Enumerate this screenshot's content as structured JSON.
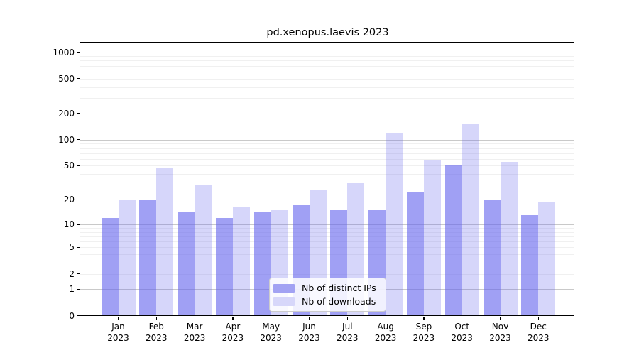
{
  "title": "pd.xenopus.laevis 2023",
  "chart_data": {
    "type": "bar",
    "title": "pd.xenopus.laevis 2023",
    "xlabel": "",
    "ylabel": "",
    "categories": [
      "Jan",
      "Feb",
      "Mar",
      "Apr",
      "May",
      "Jun",
      "Jul",
      "Aug",
      "Sep",
      "Oct",
      "Nov",
      "Dec"
    ],
    "year_label": "2023",
    "series": [
      {
        "name": "Nb of distinct IPs",
        "color": "rgba(102,102,238,0.62)",
        "swatch": "#a2a2f3",
        "values": [
          12,
          20,
          14,
          12,
          14,
          17,
          15,
          15,
          25,
          50,
          20,
          13
        ]
      },
      {
        "name": "Nb of downloads",
        "color": "rgba(102,102,238,0.27)",
        "swatch": "#d7d7fa",
        "values": [
          20,
          48,
          30,
          16,
          15,
          26,
          31,
          120,
          58,
          150,
          55,
          19
        ]
      }
    ],
    "yscale": "log10(1+v)",
    "ylim": [
      0,
      1000
    ],
    "yticks": [
      0,
      1,
      2,
      5,
      10,
      20,
      50,
      100,
      200,
      500,
      1000
    ],
    "grid": {
      "major_values": [
        1,
        10,
        100,
        1000
      ],
      "minor_values": [
        2,
        3,
        4,
        5,
        6,
        7,
        8,
        9,
        20,
        30,
        40,
        50,
        60,
        70,
        80,
        90,
        200,
        300,
        400,
        500,
        600,
        700,
        800,
        900
      ],
      "major_color": "#c9c9c9",
      "minor_color": "#f0f0f0"
    },
    "legend_position": "lower center",
    "frame_color": "#000000",
    "background_color": "#ffffff"
  }
}
